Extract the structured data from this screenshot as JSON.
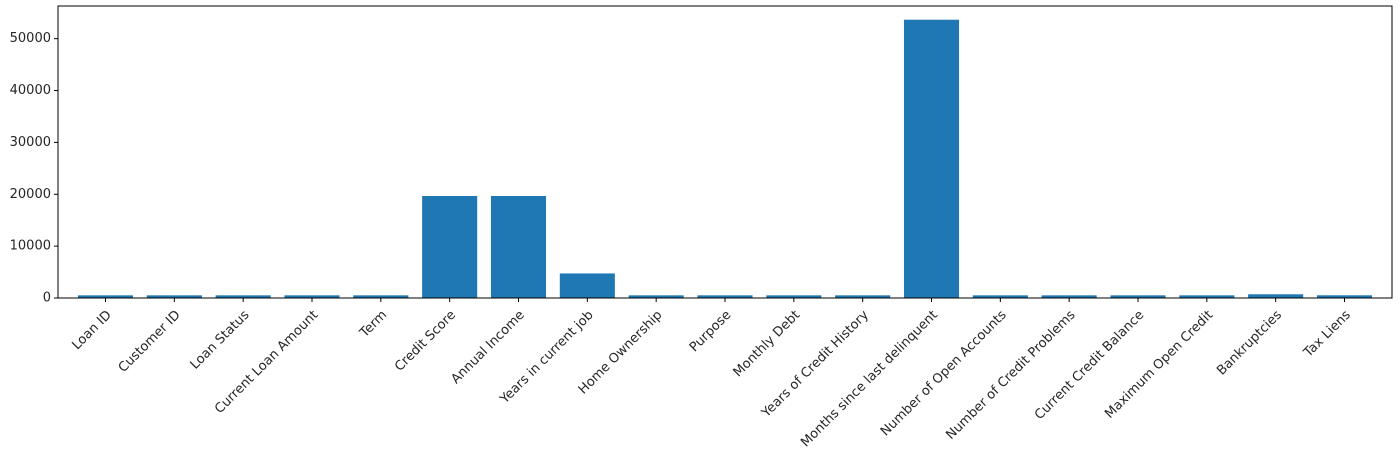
{
  "chart_data": {
    "type": "bar",
    "title": "",
    "xlabel": "",
    "ylabel": "",
    "categories": [
      "Loan ID",
      "Customer ID",
      "Loan Status",
      "Current Loan Amount",
      "Term",
      "Credit Score",
      "Annual Income",
      "Years in current job",
      "Home Ownership",
      "Purpose",
      "Monthly Debt",
      "Years of Credit History",
      "Months since last delinquent",
      "Number of Open Accounts",
      "Number of Credit Problems",
      "Current Credit Balance",
      "Maximum Open Credit",
      "Bankruptcies",
      "Tax Liens"
    ],
    "values": [
      514,
      514,
      514,
      514,
      514,
      19668,
      19668,
      4736,
      514,
      514,
      514,
      514,
      53655,
      514,
      514,
      514,
      514,
      718,
      524
    ],
    "ylim": [
      0,
      56300
    ],
    "yticks": [
      0,
      10000,
      20000,
      30000,
      40000,
      50000
    ],
    "bar_color": "#1f77b4",
    "grid": false,
    "legend": "none"
  }
}
